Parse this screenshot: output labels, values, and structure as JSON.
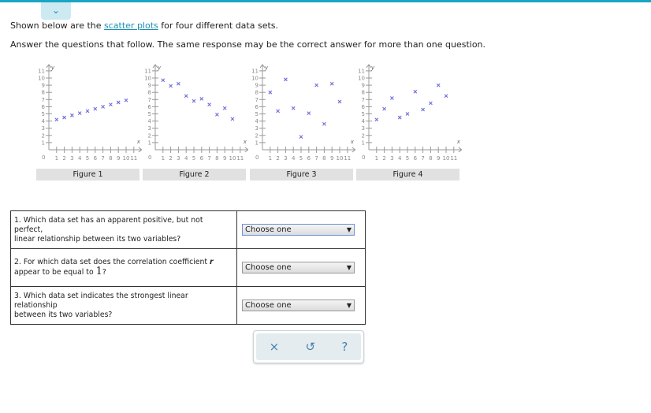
{
  "header": {
    "collapse_icon": "chevron-down-icon",
    "accent": "#1aa5c4"
  },
  "intro": {
    "prefix": "Shown below are the ",
    "link": "scatter plots",
    "suffix": " for four different data sets.",
    "line2": "Answer the questions that follow. The same response may be the correct answer for more than one question."
  },
  "chart_data": [
    {
      "type": "scatter",
      "title": "Figure 1",
      "xlabel": "x",
      "ylabel": "y",
      "xlim": [
        0,
        11
      ],
      "ylim": [
        0,
        11
      ],
      "marker": "x",
      "color": "#6b6bdc",
      "x": [
        1,
        2,
        3,
        4,
        5,
        6,
        7,
        8,
        9,
        10
      ],
      "y": [
        4.2,
        4.5,
        4.8,
        5.1,
        5.4,
        5.7,
        6.0,
        6.3,
        6.6,
        6.9
      ]
    },
    {
      "type": "scatter",
      "title": "Figure 2",
      "xlabel": "x",
      "ylabel": "y",
      "xlim": [
        0,
        11
      ],
      "ylim": [
        0,
        11
      ],
      "marker": "x",
      "color": "#6b6bdc",
      "x": [
        1,
        2,
        3,
        4,
        5,
        6,
        7,
        8,
        9,
        10
      ],
      "y": [
        9.7,
        8.9,
        9.2,
        7.5,
        6.8,
        7.1,
        6.3,
        4.9,
        5.8,
        4.3
      ]
    },
    {
      "type": "scatter",
      "title": "Figure 3",
      "xlabel": "x",
      "ylabel": "y",
      "xlim": [
        0,
        11
      ],
      "ylim": [
        0,
        11
      ],
      "marker": "x",
      "color": "#6b6bdc",
      "x": [
        1,
        2,
        3,
        4,
        5,
        6,
        7,
        8,
        9,
        10
      ],
      "y": [
        8.0,
        5.4,
        9.8,
        5.8,
        1.8,
        5.1,
        9.0,
        3.6,
        9.2,
        6.7
      ]
    },
    {
      "type": "scatter",
      "title": "Figure 4",
      "xlabel": "x",
      "ylabel": "y",
      "xlim": [
        0,
        11
      ],
      "ylim": [
        0,
        11
      ],
      "marker": "x",
      "color": "#6b6bdc",
      "x": [
        1,
        2,
        3,
        4,
        5,
        6,
        7,
        8,
        9,
        10
      ],
      "y": [
        4.2,
        5.7,
        7.2,
        4.5,
        5.0,
        8.1,
        5.6,
        6.5,
        9.0,
        7.5
      ]
    }
  ],
  "questions": [
    {
      "text_a": "1. Which data set has an apparent positive, but not perfect,",
      "text_b": "linear relationship between its two variables?",
      "select": "Choose one"
    },
    {
      "text_a": "2. For which data set does the correlation coefficient ",
      "r": "r",
      "text_b": "appear to be equal to ",
      "one": "1",
      "q": "?",
      "select": "Choose one"
    },
    {
      "text_a": "3. Which data set indicates the strongest linear relationship",
      "text_b": "between its two variables?",
      "select": "Choose one"
    }
  ],
  "tools": {
    "clear": "×",
    "undo": "↺",
    "help": "?"
  }
}
